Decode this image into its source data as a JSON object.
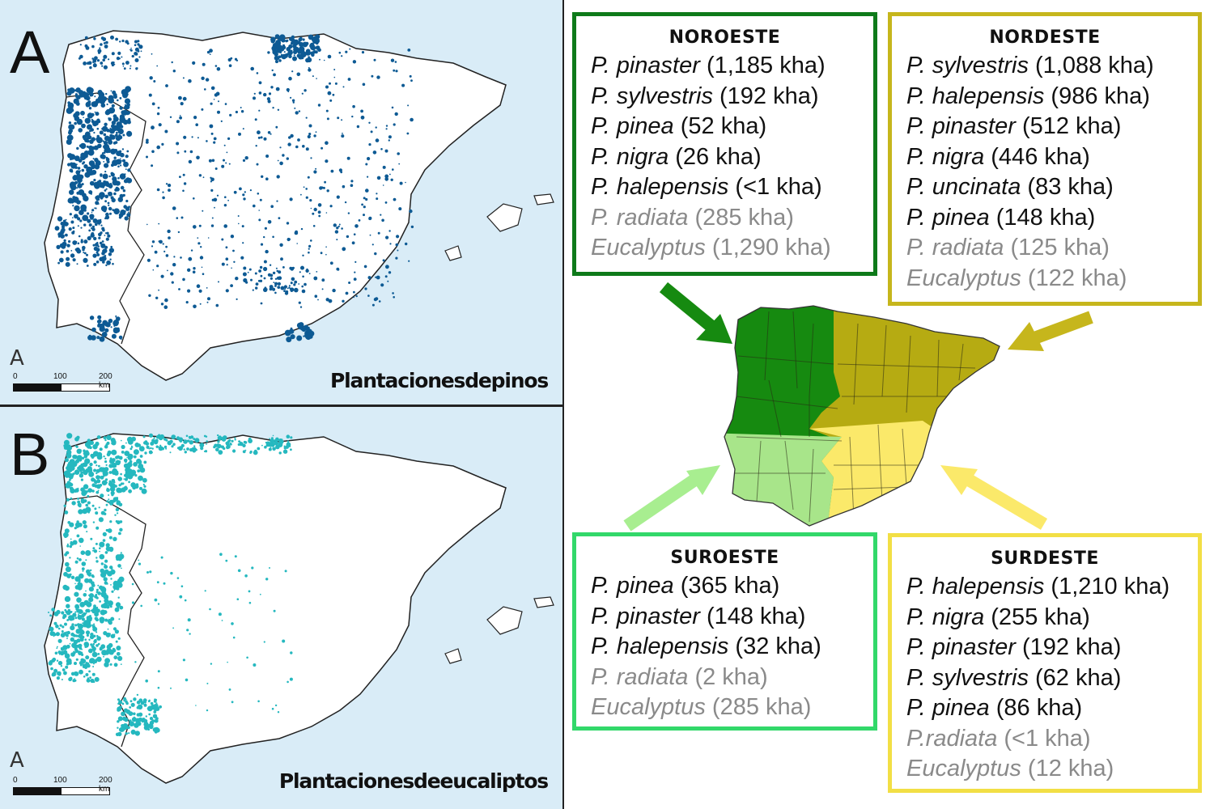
{
  "panels": [
    {
      "letter": "A",
      "north": "A",
      "scale": [
        "0",
        "100",
        "200 km"
      ],
      "caption": "Plantacionesdepinos"
    },
    {
      "letter": "B",
      "north": "A",
      "scale": [
        "0",
        "100",
        "200 km"
      ],
      "caption": "Plantacionesdeeucaliptos"
    }
  ],
  "regions": [
    {
      "name": "NOROESTE",
      "color": "#0e7a1a",
      "items": [
        {
          "species": "P. pinaster",
          "amount": "(1,185 kha)",
          "muted": false
        },
        {
          "species": "P. sylvestris",
          "amount": "(192 kha)",
          "muted": false
        },
        {
          "species": "P. pinea",
          "amount": "(52 kha)",
          "muted": false
        },
        {
          "species": "P. nigra",
          "amount": "(26 kha)",
          "muted": false
        },
        {
          "species": "P. halepensis",
          "amount": "(<1 kha)",
          "muted": false
        },
        {
          "species": "P. radiata",
          "amount": "(285 kha)",
          "muted": true
        },
        {
          "species": "Eucalyptus",
          "amount": "(1,290 kha)",
          "muted": true
        }
      ]
    },
    {
      "name": "NORDESTE",
      "color": "#c6b61c",
      "items": [
        {
          "species": "P. sylvestris",
          "amount": "(1,088 kha)",
          "muted": false
        },
        {
          "species": "P. halepensis",
          "amount": "(986 kha)",
          "muted": false
        },
        {
          "species": "P. pinaster",
          "amount": "(512 kha)",
          "muted": false
        },
        {
          "species": "P. nigra",
          "amount": "(446 kha)",
          "muted": false
        },
        {
          "species": "P. uncinata",
          "amount": "(83 kha)",
          "muted": false
        },
        {
          "species": "P. pinea",
          "amount": "(148 kha)",
          "muted": false
        },
        {
          "species": "P. radiata",
          "amount": "(125 kha)",
          "muted": true
        },
        {
          "species": "Eucalyptus",
          "amount": "(122 kha)",
          "muted": true
        }
      ]
    },
    {
      "name": "SUROESTE",
      "color": "#32d86a",
      "items": [
        {
          "species": "P. pinea",
          "amount": "(365 kha)",
          "muted": false
        },
        {
          "species": "P. pinaster",
          "amount": "(148 kha)",
          "muted": false
        },
        {
          "species": "P. halepensis",
          "amount": "(32 kha)",
          "muted": false
        },
        {
          "species": "P. radiata",
          "amount": "(2 kha)",
          "muted": true
        },
        {
          "species": "Eucalyptus",
          "amount": "(285 kha)",
          "muted": true
        }
      ]
    },
    {
      "name": "SURDESTE",
      "color": "#f2df45",
      "items": [
        {
          "species": "P. halepensis",
          "amount": "(1,210 kha)",
          "muted": false
        },
        {
          "species": "P. nigra",
          "amount": "(255 kha)",
          "muted": false
        },
        {
          "species": "P. pinaster",
          "amount": "(192 kha)",
          "muted": false
        },
        {
          "species": "P. sylvestris",
          "amount": "(62 kha)",
          "muted": false
        },
        {
          "species": "P. pinea",
          "amount": "(86 kha)",
          "muted": false
        },
        {
          "species": "P.radiata",
          "amount": "(<1 kha)",
          "muted": true
        },
        {
          "species": "Eucalyptus",
          "amount": "(12 kha)",
          "muted": true
        }
      ]
    }
  ],
  "colors": {
    "sea": "#d9ecf7",
    "pine": "#0d5a94",
    "eucalyptus": "#25b8bf",
    "noroeste_fill": "#168a10",
    "nordeste_fill": "#b6ab12",
    "suroeste_fill": "#a8e58a",
    "surdeste_fill": "#fbe96a"
  }
}
